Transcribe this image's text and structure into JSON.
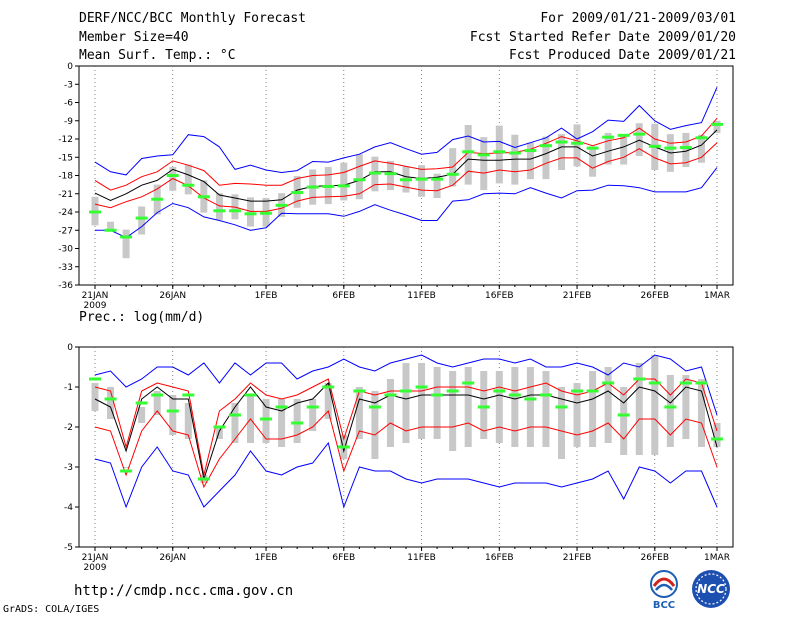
{
  "header": {
    "title_line": "DERF/NCC/BCC Monthly Forecast",
    "member_line": "Member Size=40",
    "variable_line": "Mean Surf. Temp.: °C",
    "period_line": "For 2009/01/21-2009/03/01",
    "started_line": "Fcst Started Refer Date 2009/01/20",
    "produced_line": "Fcst Produced Date 2009/01/21"
  },
  "footer": {
    "url": "http://cmdp.ncc.cma.gov.cn",
    "credit": "GrADS: COLA/IGES",
    "logo_left_text": "BCC",
    "logo_right_text": "NCC"
  },
  "colors": {
    "envelope": "#0000ff",
    "spread": "#ff0000",
    "mean": "#000000",
    "box": "#c8c8c8",
    "marker": "#33ff33"
  },
  "chart_data": [
    {
      "type": "line",
      "name": "temperature",
      "title": "Mean Surf. Temp.: °C",
      "ylim": [
        -36,
        0
      ],
      "yticks": [
        0,
        -3,
        -6,
        -9,
        -12,
        -15,
        -18,
        -21,
        -24,
        -27,
        -30,
        -33,
        -36
      ],
      "x_labels": [
        {
          "day": 0,
          "label": "21JAN"
        },
        {
          "day": 5,
          "label": "26JAN"
        },
        {
          "day": 11,
          "label": "1FEB"
        },
        {
          "day": 16,
          "label": "6FEB"
        },
        {
          "day": 21,
          "label": "11FEB"
        },
        {
          "day": 26,
          "label": "16FEB"
        },
        {
          "day": 31,
          "label": "21FEB"
        },
        {
          "day": 36,
          "label": "26FEB"
        },
        {
          "day": 40,
          "label": "1MAR"
        }
      ],
      "year_label": "2009",
      "series": [
        {
          "name": "max",
          "values": [
            -15.8,
            -17.4,
            -17.9,
            -15.2,
            -14.8,
            -14.6,
            -11.3,
            -11.6,
            -13.3,
            -17.0,
            -16.3,
            -17.1,
            -17.5,
            -17.2,
            -15.7,
            -15.8,
            -15.1,
            -14.5,
            -13.3,
            -12.6,
            -13.6,
            -14.5,
            -14.2,
            -12.1,
            -11.5,
            -12.5,
            -12.4,
            -13.4,
            -12.6,
            -11.8,
            -10.2,
            -12.0,
            -10.8,
            -8.9,
            -9.1,
            -6.5,
            -9.0,
            -10.4,
            -9.8,
            -9.3,
            -3.5
          ]
        },
        {
          "name": "upper",
          "values": [
            -18.8,
            -20.4,
            -19.6,
            -18.2,
            -17.4,
            -15.6,
            -16.3,
            -17.2,
            -19.6,
            -19.3,
            -19.4,
            -19.6,
            -19.6,
            -18.5,
            -18.0,
            -17.9,
            -17.5,
            -16.5,
            -15.6,
            -16.0,
            -16.5,
            -17.0,
            -16.9,
            -16.6,
            -14.2,
            -14.4,
            -14.3,
            -14.2,
            -13.7,
            -12.7,
            -11.6,
            -12.3,
            -13.1,
            -12.3,
            -11.8,
            -10.2,
            -12.0,
            -12.7,
            -12.5,
            -11.5,
            -8.6
          ]
        },
        {
          "name": "mean",
          "values": [
            -20.9,
            -22.1,
            -21.0,
            -19.6,
            -18.8,
            -17.0,
            -17.9,
            -19.0,
            -21.2,
            -21.7,
            -22.2,
            -22.2,
            -22.0,
            -20.4,
            -19.8,
            -19.7,
            -19.6,
            -18.8,
            -17.4,
            -17.4,
            -18.2,
            -18.5,
            -18.3,
            -17.8,
            -15.3,
            -15.5,
            -15.5,
            -15.3,
            -15.3,
            -14.4,
            -13.3,
            -13.3,
            -14.8,
            -14.0,
            -13.3,
            -12.2,
            -13.3,
            -14.3,
            -14.0,
            -13.0,
            -10.5
          ]
        },
        {
          "name": "lower",
          "values": [
            -22.7,
            -23.3,
            -22.3,
            -21.5,
            -20.2,
            -18.5,
            -19.7,
            -21.7,
            -23.0,
            -23.2,
            -23.9,
            -23.9,
            -23.4,
            -22.2,
            -21.6,
            -21.5,
            -21.4,
            -21.0,
            -19.5,
            -19.4,
            -19.9,
            -20.4,
            -20.5,
            -19.6,
            -17.3,
            -17.6,
            -17.1,
            -17.4,
            -17.1,
            -16.0,
            -15.1,
            -15.1,
            -16.8,
            -15.7,
            -15.0,
            -13.6,
            -15.1,
            -16.1,
            -15.9,
            -15.0,
            -12.6
          ]
        },
        {
          "name": "min",
          "values": [
            -27.0,
            -27.0,
            -28.2,
            -26.4,
            -24.1,
            -22.6,
            -23.3,
            -24.8,
            -25.4,
            -26.1,
            -27.0,
            -26.6,
            -24.2,
            -24.3,
            -24.3,
            -24.3,
            -24.7,
            -23.9,
            -22.8,
            -23.7,
            -24.5,
            -25.4,
            -25.4,
            -22.2,
            -22.0,
            -21.0,
            -20.9,
            -21.0,
            -20.0,
            -20.9,
            -21.7,
            -20.5,
            -20.4,
            -19.6,
            -19.7,
            -20.0,
            -20.7,
            -20.7,
            -20.7,
            -20.0,
            -16.7
          ]
        },
        {
          "name": "box_high",
          "values": [
            -21.5,
            -25.6,
            -26.9,
            -23.1,
            -19.5,
            -16.6,
            -16.2,
            -18.8,
            -20.9,
            -21.1,
            -21.6,
            -21.7,
            -20.9,
            -18.1,
            -17.0,
            -16.6,
            -15.9,
            -14.5,
            -14.9,
            -15.6,
            -16.5,
            -16.3,
            -17.7,
            -13.5,
            -9.7,
            -11.7,
            -9.8,
            -11.3,
            -12.6,
            -11.6,
            -11.2,
            -9.6,
            -13.2,
            -11.0,
            -11.2,
            -9.4,
            -9.5,
            -11.2,
            -11.0,
            -11.3,
            -9.0
          ]
        },
        {
          "name": "box_low",
          "values": [
            -26.2,
            -27.2,
            -31.6,
            -27.7,
            -24.4,
            -20.5,
            -21.1,
            -24.1,
            -25.3,
            -25.2,
            -26.4,
            -26.4,
            -24.8,
            -23.3,
            -22.8,
            -22.7,
            -22.1,
            -21.9,
            -20.6,
            -20.4,
            -20.8,
            -21.5,
            -21.7,
            -19.8,
            -19.5,
            -20.4,
            -19.3,
            -19.5,
            -18.6,
            -18.6,
            -17.1,
            -16.5,
            -18.2,
            -16.2,
            -16.2,
            -14.8,
            -17.1,
            -17.4,
            -16.6,
            -15.9,
            -11.0
          ]
        },
        {
          "name": "marker",
          "values": [
            -24.0,
            -27.0,
            -28.1,
            -25.0,
            -21.9,
            -18.0,
            -19.6,
            -21.5,
            -23.8,
            -23.8,
            -24.3,
            -24.2,
            -22.9,
            -20.8,
            -19.9,
            -19.8,
            -19.7,
            -18.7,
            -17.6,
            -17.7,
            -18.7,
            -18.6,
            -18.6,
            -17.8,
            -14.1,
            -14.6,
            -14.1,
            -14.3,
            -13.9,
            -13.1,
            -12.5,
            -12.7,
            -13.5,
            -11.7,
            -11.4,
            -11.2,
            -13.2,
            -13.5,
            -13.4,
            -11.8,
            -9.6
          ]
        }
      ]
    },
    {
      "type": "line",
      "name": "precipitation",
      "title": "Prec.: log(mm/d)",
      "ylim": [
        -5,
        0
      ],
      "yticks": [
        0,
        -1,
        -2,
        -3,
        -4,
        -5
      ],
      "x_labels": [
        {
          "day": 0,
          "label": "21JAN"
        },
        {
          "day": 5,
          "label": "26JAN"
        },
        {
          "day": 11,
          "label": "1FEB"
        },
        {
          "day": 16,
          "label": "6FEB"
        },
        {
          "day": 21,
          "label": "11FEB"
        },
        {
          "day": 26,
          "label": "16FEB"
        },
        {
          "day": 31,
          "label": "21FEB"
        },
        {
          "day": 36,
          "label": "26FEB"
        },
        {
          "day": 40,
          "label": "1MAR"
        }
      ],
      "year_label": "2009",
      "series": [
        {
          "name": "max",
          "values": [
            -0.7,
            -0.6,
            -1.0,
            -0.8,
            -0.5,
            -0.5,
            -0.7,
            -0.4,
            -0.9,
            -0.4,
            -0.7,
            -0.4,
            -0.4,
            -0.8,
            -0.6,
            -0.5,
            -0.3,
            -0.5,
            -0.6,
            -0.4,
            -0.3,
            -0.2,
            -0.4,
            -0.5,
            -0.4,
            -0.3,
            -0.3,
            -0.4,
            -0.3,
            -0.5,
            -0.5,
            -0.4,
            -0.5,
            -0.7,
            -0.4,
            -0.5,
            -0.2,
            -0.3,
            -0.6,
            -0.5,
            -1.7
          ]
        },
        {
          "name": "upper",
          "values": [
            -1.0,
            -1.1,
            -2.5,
            -1.1,
            -0.9,
            -1.0,
            -1.1,
            -3.2,
            -1.6,
            -1.3,
            -0.9,
            -1.2,
            -1.3,
            -1.2,
            -1.0,
            -0.8,
            -2.3,
            -1.1,
            -1.2,
            -1.1,
            -1.1,
            -1.1,
            -1.0,
            -1.0,
            -1.0,
            -1.1,
            -1.0,
            -1.1,
            -1.0,
            -0.9,
            -1.1,
            -1.2,
            -1.1,
            -0.9,
            -1.2,
            -0.8,
            -0.8,
            -1.2,
            -0.8,
            -0.9,
            -2.1
          ]
        },
        {
          "name": "mean",
          "values": [
            -1.3,
            -1.5,
            -2.6,
            -1.3,
            -1.0,
            -1.3,
            -1.3,
            -3.3,
            -2.1,
            -1.5,
            -1.0,
            -1.5,
            -1.6,
            -1.4,
            -1.3,
            -0.9,
            -2.6,
            -1.3,
            -1.4,
            -1.2,
            -1.3,
            -1.2,
            -1.2,
            -1.2,
            -1.2,
            -1.3,
            -1.2,
            -1.3,
            -1.2,
            -1.2,
            -1.3,
            -1.4,
            -1.3,
            -1.1,
            -1.4,
            -1.0,
            -1.1,
            -1.4,
            -1.0,
            -1.1,
            -2.5
          ]
        },
        {
          "name": "lower",
          "values": [
            -2.0,
            -2.1,
            -3.2,
            -2.1,
            -1.6,
            -2.1,
            -2.2,
            -3.5,
            -2.8,
            -2.3,
            -1.8,
            -2.3,
            -2.3,
            -2.2,
            -2.0,
            -1.6,
            -3.1,
            -2.1,
            -2.2,
            -1.9,
            -2.1,
            -2.0,
            -2.0,
            -2.0,
            -1.9,
            -2.1,
            -2.0,
            -2.1,
            -2.0,
            -2.0,
            -2.1,
            -2.2,
            -2.1,
            -1.9,
            -2.3,
            -1.8,
            -1.8,
            -2.2,
            -1.8,
            -1.9,
            -3.0
          ]
        },
        {
          "name": "min",
          "values": [
            -2.8,
            -2.9,
            -4.0,
            -3.0,
            -2.5,
            -3.1,
            -3.2,
            -4.0,
            -3.6,
            -3.2,
            -2.6,
            -3.1,
            -3.2,
            -3.0,
            -2.9,
            -2.4,
            -4.0,
            -3.0,
            -3.1,
            -3.1,
            -3.3,
            -3.4,
            -3.3,
            -3.3,
            -3.3,
            -3.4,
            -3.5,
            -3.4,
            -3.4,
            -3.4,
            -3.5,
            -3.4,
            -3.3,
            -3.1,
            -3.8,
            -3.0,
            -3.1,
            -3.4,
            -3.1,
            -3.1,
            -4.0
          ]
        },
        {
          "name": "box_high",
          "values": [
            -0.9,
            -1.0,
            -3.0,
            -1.5,
            -1.1,
            -1.2,
            -1.4,
            -3.2,
            -2.0,
            -1.4,
            -1.2,
            -1.3,
            -1.3,
            -1.3,
            -1.3,
            -0.9,
            -2.2,
            -1.0,
            -1.1,
            -0.8,
            -0.4,
            -0.4,
            -0.5,
            -0.6,
            -0.5,
            -0.6,
            -0.6,
            -0.5,
            -0.5,
            -0.6,
            -1.0,
            -0.9,
            -0.6,
            -0.5,
            -1.0,
            -0.4,
            -0.2,
            -0.7,
            -0.7,
            -0.8,
            -1.9
          ]
        },
        {
          "name": "box_low",
          "values": [
            -1.6,
            -1.8,
            -3.0,
            -1.9,
            -1.7,
            -2.2,
            -2.3,
            -3.4,
            -2.3,
            -2.4,
            -2.4,
            -2.4,
            -2.5,
            -2.4,
            -2.1,
            -1.8,
            -2.8,
            -2.3,
            -2.8,
            -2.5,
            -2.4,
            -2.3,
            -2.3,
            -2.6,
            -2.5,
            -2.3,
            -2.4,
            -2.5,
            -2.5,
            -2.5,
            -2.8,
            -2.5,
            -2.5,
            -2.4,
            -2.7,
            -2.7,
            -2.7,
            -2.5,
            -2.3,
            -2.5,
            -2.5
          ]
        },
        {
          "name": "marker",
          "values": [
            -0.8,
            -1.3,
            -3.1,
            -1.4,
            -1.2,
            -1.6,
            -1.2,
            -3.3,
            -2.0,
            -1.7,
            -1.2,
            -1.8,
            -1.5,
            -1.9,
            -1.5,
            -1.0,
            -2.5,
            -1.1,
            -1.5,
            -1.2,
            -1.1,
            -1.0,
            -1.2,
            -1.1,
            -0.9,
            -1.5,
            -1.1,
            -1.2,
            -1.3,
            -1.2,
            -1.5,
            -1.1,
            -1.1,
            -0.9,
            -1.7,
            -0.8,
            -0.9,
            -1.5,
            -0.9,
            -0.9,
            -2.3
          ]
        }
      ]
    }
  ]
}
